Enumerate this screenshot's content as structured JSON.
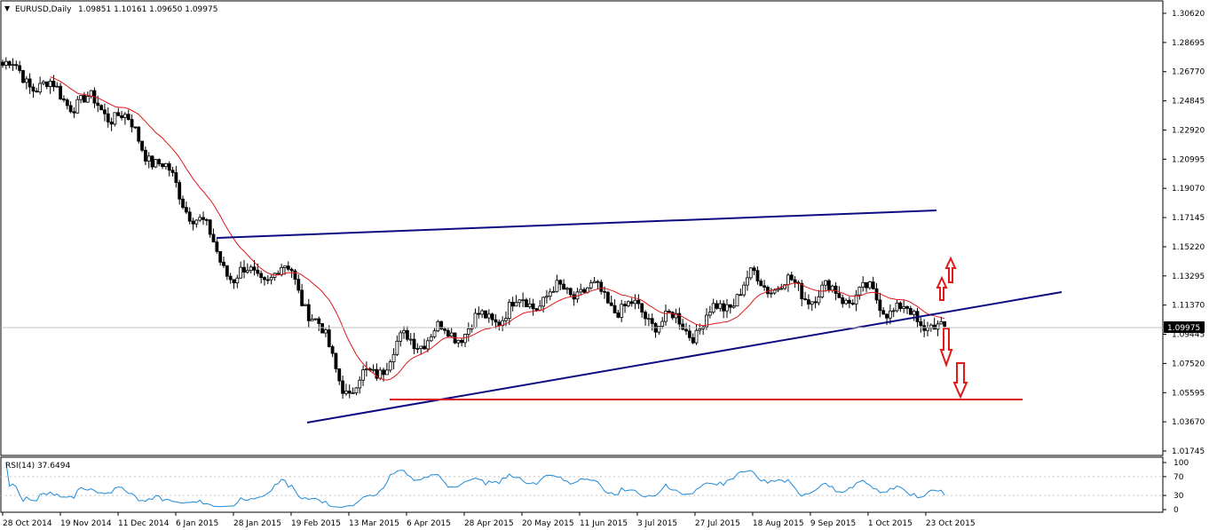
{
  "header": {
    "menu_glyph": "▼",
    "symbol": "EURUSD,Daily",
    "ohlc": "1.09851 1.10161 1.09650 1.09975"
  },
  "rsi": {
    "title": "RSI(14) 37.6494",
    "levels": [
      "100",
      "70",
      "30",
      "0"
    ],
    "line_color": "#1f8ad6"
  },
  "price_axis": {
    "labels": [
      "1.30620",
      "1.28695",
      "1.26770",
      "1.24845",
      "1.22920",
      "1.20995",
      "1.19070",
      "1.17145",
      "1.15220",
      "1.13295",
      "1.11370",
      "1.09445",
      "1.07520",
      "1.05595",
      "1.03670",
      "1.01745"
    ],
    "current_price": "1.09975"
  },
  "date_axis": {
    "labels": [
      "28 Oct 2014",
      "19 Nov 2014",
      "11 Dec 2014",
      "6 Jan 2015",
      "28 Jan 2015",
      "19 Feb 2015",
      "13 Mar 2015",
      "6 Apr 2015",
      "28 Apr 2015",
      "20 May 2015",
      "11 Jun 2015",
      "3 Jul 2015",
      "27 Jul 2015",
      "18 Aug 2015",
      "9 Sep 2015",
      "1 Oct 2015",
      "23 Oct 2015"
    ]
  },
  "colors": {
    "candle": "#000000",
    "ma": "#e01818",
    "trendline": "#0b0b82",
    "support": "#e01818",
    "arrow": "#e01818"
  },
  "chart_data": {
    "type": "candlestick",
    "title": "EURUSD,Daily",
    "ylim": [
      1.01745,
      1.3062
    ],
    "close_path": [
      [
        "28 Oct 2014",
        1.272
      ],
      [
        "19 Nov 2014",
        1.252
      ],
      [
        "11 Dec 2014",
        1.24
      ],
      [
        "6 Jan 2015",
        1.192
      ],
      [
        "28 Jan 2015",
        1.132
      ],
      [
        "19 Feb 2015",
        1.135
      ],
      [
        "13 Mar 2015",
        1.055
      ],
      [
        "6 Apr 2015",
        1.091
      ],
      [
        "28 Apr 2015",
        1.098
      ],
      [
        "20 May 2015",
        1.115
      ],
      [
        "11 Jun 2015",
        1.125
      ],
      [
        "3 Jul 2015",
        1.108
      ],
      [
        "27 Jul 2015",
        1.098
      ],
      [
        "18 Aug 2015",
        1.131
      ],
      [
        "9 Sep 2015",
        1.122
      ],
      [
        "1 Oct 2015",
        1.12
      ],
      [
        "23 Oct 2015",
        1.1
      ]
    ],
    "last_close": 1.09975
  }
}
